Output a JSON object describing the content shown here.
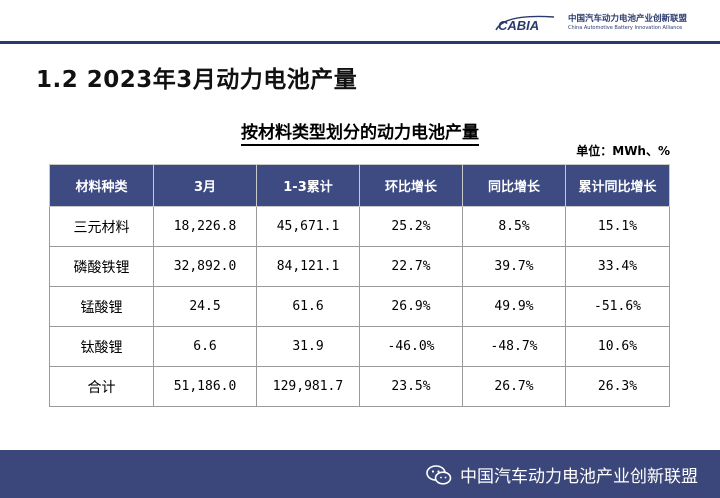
{
  "header": {
    "logo_mark": "CABIA",
    "logo_cn": "中国汽车动力电池产业创新联盟",
    "logo_en": "China Automotive Battery Innovation Alliance"
  },
  "slide": {
    "title": "1.2 2023年3月动力电池产量"
  },
  "table": {
    "title": "按材料类型划分的动力电池产量",
    "unit": "单位：MWh、%",
    "columns": [
      "材料种类",
      "3月",
      "1-3累计",
      "环比增长",
      "同比增长",
      "累计同比增长"
    ],
    "rows": [
      [
        "三元材料",
        "18,226.8",
        "45,671.1",
        "25.2%",
        "8.5%",
        "15.1%"
      ],
      [
        "磷酸铁锂",
        "32,892.0",
        "84,121.1",
        "22.7%",
        "39.7%",
        "33.4%"
      ],
      [
        "锰酸锂",
        "24.5",
        "61.6",
        "26.9%",
        "49.9%",
        "-51.6%"
      ],
      [
        "钛酸锂",
        "6.6",
        "31.9",
        "-46.0%",
        "-48.7%",
        "10.6%"
      ],
      [
        "合计",
        "51,186.0",
        "129,981.7",
        "23.5%",
        "26.7%",
        "26.3%"
      ]
    ]
  },
  "footer": {
    "icon": "wechat-icon",
    "text": "中国汽车动力电池产业创新联盟"
  },
  "colors": {
    "brand": "#3d4b82",
    "footer": "#3b477a"
  }
}
